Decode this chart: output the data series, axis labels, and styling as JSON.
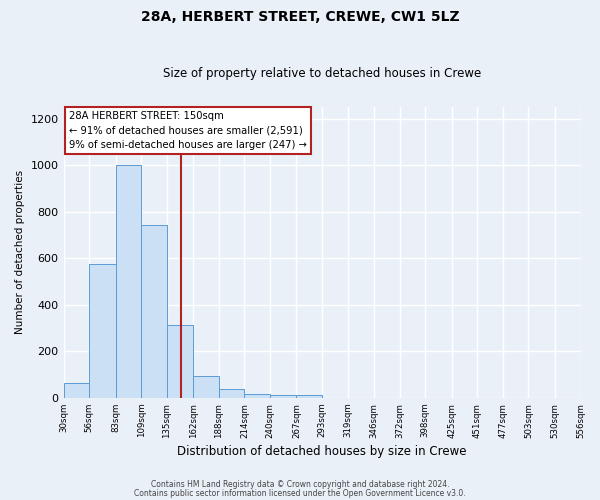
{
  "title": "28A, HERBERT STREET, CREWE, CW1 5LZ",
  "subtitle": "Size of property relative to detached houses in Crewe",
  "xlabel": "Distribution of detached houses by size in Crewe",
  "ylabel": "Number of detached properties",
  "bar_edges": [
    30,
    56,
    83,
    109,
    135,
    162,
    188,
    214,
    240,
    267,
    293,
    319,
    346,
    372,
    398,
    425,
    451,
    477,
    503,
    530,
    556
  ],
  "bar_heights": [
    65,
    575,
    1000,
    745,
    315,
    95,
    40,
    18,
    10,
    10,
    0,
    0,
    0,
    0,
    0,
    0,
    0,
    0,
    0,
    0
  ],
  "bar_color": "#cce0f5",
  "bar_edge_color": "#5b9bd5",
  "property_size": 150,
  "vline_color": "#b22222",
  "annotation_title": "28A HERBERT STREET: 150sqm",
  "annotation_line1": "← 91% of detached houses are smaller (2,591)",
  "annotation_line2": "9% of semi-detached houses are larger (247) →",
  "ylim": [
    0,
    1250
  ],
  "yticks": [
    0,
    200,
    400,
    600,
    800,
    1000,
    1200
  ],
  "tick_labels": [
    "30sqm",
    "56sqm",
    "83sqm",
    "109sqm",
    "135sqm",
    "162sqm",
    "188sqm",
    "214sqm",
    "240sqm",
    "267sqm",
    "293sqm",
    "319sqm",
    "346sqm",
    "372sqm",
    "398sqm",
    "425sqm",
    "451sqm",
    "477sqm",
    "503sqm",
    "530sqm",
    "556sqm"
  ],
  "background_color": "#eaf0f8",
  "grid_color": "#ffffff",
  "footer_line1": "Contains HM Land Registry data © Crown copyright and database right 2024.",
  "footer_line2": "Contains public sector information licensed under the Open Government Licence v3.0."
}
